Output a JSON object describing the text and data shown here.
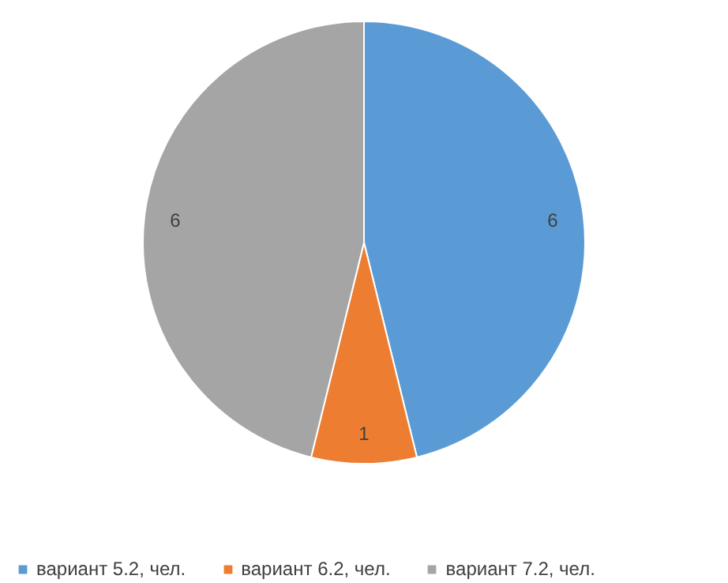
{
  "chart_data": {
    "type": "pie",
    "categories": [
      "вариант 5.2, чел.",
      "вариант 6.2, чел.",
      "вариант 7.2, чел."
    ],
    "values": [
      6,
      1,
      6
    ],
    "colors": [
      "#5b9bd5",
      "#ed7d31",
      "#a5a5a5"
    ],
    "data_labels": true,
    "legend": "bottom"
  }
}
